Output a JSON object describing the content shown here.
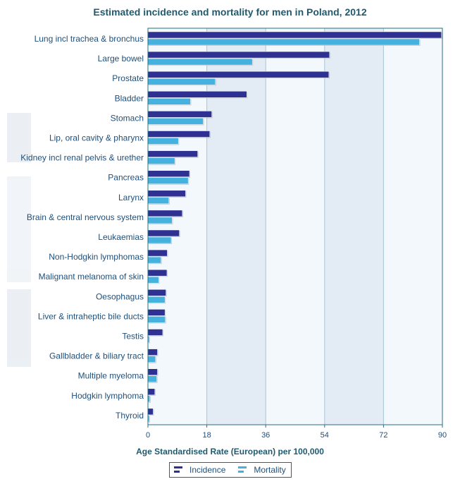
{
  "title": "Estimated incidence and mortality for men in Poland, 2012",
  "xlabel": "Age Standardised Rate (European) per 100,000",
  "colors": {
    "incidence": "#2e3192",
    "mortality": "#45b1de",
    "plot_bg_light": "#f3f8fc",
    "plot_bg_band": "#e3ecf4"
  },
  "legend": {
    "incidence": "Incidence",
    "mortality": "Mortality"
  },
  "chart_data": {
    "type": "bar",
    "orientation": "horizontal",
    "categories": [
      "Lung incl trachea & bronchus",
      "Large bowel",
      "Prostate",
      "Bladder",
      "Stomach",
      "Lip, oral cavity & pharynx",
      "Kidney incl renal pelvis & urether",
      "Pancreas",
      "Larynx",
      "Brain & central nervous system",
      "Leukaemias",
      "Non-Hodgkin lymphomas",
      "Malignant melanoma of skin",
      "Oesophagus",
      "Liver & intraheptic bile ducts",
      "Testis",
      "Gallbladder & biliary tract",
      "Multiple myeloma",
      "Hodgkin lymphoma",
      "Thyroid"
    ],
    "series": [
      {
        "name": "Incidence",
        "values": [
          89.7,
          55.5,
          55.3,
          30.2,
          19.5,
          18.9,
          15.2,
          12.7,
          11.5,
          10.5,
          9.6,
          5.9,
          5.8,
          5.5,
          5.2,
          4.5,
          2.9,
          2.9,
          2.1,
          1.6
        ]
      },
      {
        "name": "Mortality",
        "values": [
          83.0,
          31.9,
          20.6,
          13.0,
          16.9,
          9.3,
          8.2,
          12.3,
          6.4,
          7.4,
          7.1,
          4.0,
          3.3,
          5.2,
          5.3,
          0.4,
          2.3,
          2.7,
          0.6,
          0.4
        ]
      }
    ],
    "xlim": [
      0,
      90
    ],
    "ticks": [
      0,
      18,
      36,
      54,
      72,
      90
    ],
    "grid": true,
    "legend_position": "bottom"
  }
}
